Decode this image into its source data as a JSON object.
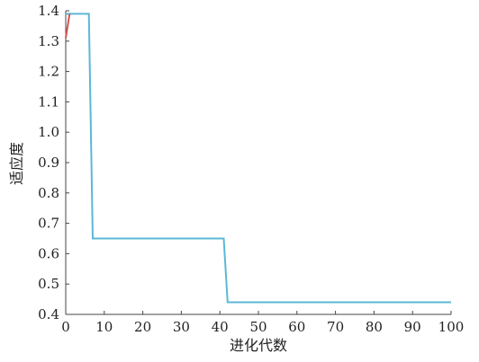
{
  "chart_data": {
    "type": "line",
    "title": "",
    "xlabel": "进化代数",
    "ylabel": "适应度",
    "xlim": [
      0,
      100
    ],
    "ylim": [
      0.4,
      1.4
    ],
    "x_ticks": [
      "0",
      "10",
      "20",
      "30",
      "40",
      "50",
      "60",
      "70",
      "80",
      "90",
      "100"
    ],
    "y_ticks": [
      "0.4",
      "0.5",
      "0.6",
      "0.7",
      "0.8",
      "0.9",
      "1.0",
      "1.1",
      "1.2",
      "1.3",
      "1.4"
    ],
    "grid": false,
    "legend": "none",
    "series": [
      {
        "color": "#5bb8d6",
        "x": [
          0,
          6,
          7,
          41,
          42,
          100
        ],
        "y": [
          1.39,
          1.39,
          0.65,
          0.65,
          0.44,
          0.44
        ]
      },
      {
        "color": "#d9534f",
        "x": [
          0,
          1
        ],
        "y": [
          1.31,
          1.39
        ]
      }
    ]
  }
}
